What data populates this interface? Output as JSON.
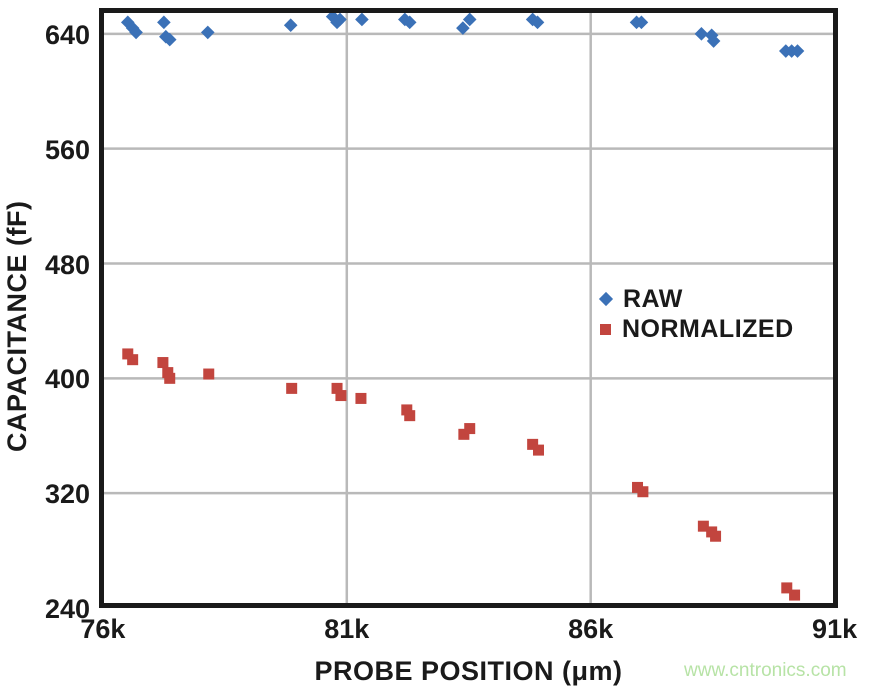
{
  "watermark": {
    "text": "www.cntronics.com",
    "color": "#b7e3a6"
  },
  "chart_data": {
    "type": "scatter",
    "title": "",
    "xlabel": "PROBE POSITION (μm)",
    "ylabel": "CAPACITANCE (fF)",
    "xlim": [
      75920,
      91070
    ],
    "ylim": [
      240,
      658
    ],
    "grid": {
      "on": true,
      "vertical_at": [
        81000,
        86000
      ],
      "horizontal_at": [
        320,
        400,
        480,
        560,
        640
      ],
      "color": "#b9b9b9"
    },
    "frame_color": "#1a1a1a",
    "x_ticks": [
      {
        "value": 76000,
        "label": "76k"
      },
      {
        "value": 81000,
        "label": "81k"
      },
      {
        "value": 86000,
        "label": "86k"
      },
      {
        "value": 91000,
        "label": "91k"
      }
    ],
    "y_ticks": [
      {
        "value": 640,
        "label": "640"
      },
      {
        "value": 560,
        "label": "560"
      },
      {
        "value": 480,
        "label": "480"
      },
      {
        "value": 400,
        "label": "400"
      },
      {
        "value": 320,
        "label": "320"
      },
      {
        "value": 240,
        "label": "240"
      }
    ],
    "legend": {
      "position": "inside-right"
    },
    "series": [
      {
        "name": "RAW",
        "marker": "diamond",
        "color": "#3b71b7",
        "points": [
          [
            76510,
            648
          ],
          [
            76610,
            644
          ],
          [
            76680,
            641
          ],
          [
            77250,
            648
          ],
          [
            77290,
            638
          ],
          [
            77370,
            636
          ],
          [
            78150,
            641
          ],
          [
            79850,
            646
          ],
          [
            80710,
            652
          ],
          [
            80800,
            648
          ],
          [
            80860,
            650
          ],
          [
            81310,
            650
          ],
          [
            82190,
            650
          ],
          [
            82290,
            648
          ],
          [
            83380,
            644
          ],
          [
            83520,
            650
          ],
          [
            84810,
            650
          ],
          [
            84910,
            648
          ],
          [
            86940,
            648
          ],
          [
            87040,
            648
          ],
          [
            88270,
            640
          ],
          [
            88480,
            639
          ],
          [
            88520,
            635
          ],
          [
            90000,
            628
          ],
          [
            90120,
            628
          ],
          [
            90240,
            628
          ]
        ]
      },
      {
        "name": "NORMALIZED",
        "marker": "square",
        "color": "#c2453e",
        "points": [
          [
            76510,
            417
          ],
          [
            76610,
            413
          ],
          [
            77230,
            411
          ],
          [
            77330,
            404
          ],
          [
            77370,
            400
          ],
          [
            78170,
            403
          ],
          [
            79870,
            393
          ],
          [
            80800,
            393
          ],
          [
            80880,
            388
          ],
          [
            81290,
            386
          ],
          [
            82230,
            378
          ],
          [
            82290,
            374
          ],
          [
            83400,
            361
          ],
          [
            83520,
            365
          ],
          [
            84810,
            354
          ],
          [
            84930,
            350
          ],
          [
            86960,
            324
          ],
          [
            87070,
            321
          ],
          [
            88310,
            297
          ],
          [
            88480,
            293
          ],
          [
            88560,
            290
          ],
          [
            90020,
            254
          ],
          [
            90180,
            249
          ]
        ]
      }
    ]
  }
}
